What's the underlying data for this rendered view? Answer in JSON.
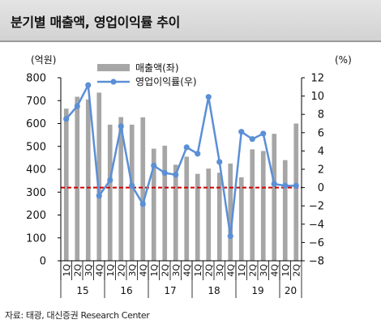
{
  "header": {
    "title": "분기별 매출액, 영업이익률 추이"
  },
  "source": "자료: 태광, 대신증권 Research Center",
  "colors": {
    "bar": "#a6a6a6",
    "line": "#5b8fd6",
    "reference": "#d40000",
    "header_bg": "#d9d9d9"
  },
  "chart_data": {
    "type": "bar+line",
    "left_axis_label": "(억원)",
    "right_axis_label": "(%)",
    "categories": [
      "1Q",
      "2Q",
      "3Q",
      "4Q",
      "1Q",
      "2Q",
      "3Q",
      "4Q",
      "1Q",
      "2Q",
      "3Q",
      "4Q",
      "1Q",
      "2Q",
      "3Q",
      "4Q",
      "1Q",
      "2Q",
      "3Q",
      "4Q",
      "1Q",
      "2Q"
    ],
    "years": [
      {
        "label": "15",
        "count": 4
      },
      {
        "label": "16",
        "count": 4
      },
      {
        "label": "17",
        "count": 4
      },
      {
        "label": "18",
        "count": 4
      },
      {
        "label": "19",
        "count": 4
      },
      {
        "label": "20",
        "count": 2
      }
    ],
    "series": [
      {
        "name": "매출액(좌)",
        "type": "bar",
        "axis": "left",
        "values": [
          665,
          717,
          705,
          735,
          595,
          628,
          595,
          627,
          490,
          503,
          420,
          455,
          380,
          403,
          385,
          425,
          365,
          487,
          480,
          555,
          440,
          600
        ]
      },
      {
        "name": "영업이익률(우)",
        "type": "line",
        "axis": "right",
        "values": [
          7.5,
          8.9,
          11.2,
          -0.9,
          0.8,
          6.7,
          0.2,
          -1.8,
          2.4,
          1.6,
          1.4,
          4.4,
          3.7,
          9.9,
          2.8,
          -5.3,
          6.1,
          5.3,
          5.9,
          0.4,
          0.2,
          0.2
        ]
      }
    ],
    "left_ylim": [
      0,
      800
    ],
    "left_ticks": [
      "800",
      "700",
      "600",
      "500",
      "400",
      "300",
      "200",
      "100",
      "0"
    ],
    "right_ylim": [
      -8,
      12
    ],
    "right_ticks": [
      "12",
      "10",
      "8",
      "6",
      "4",
      "2",
      "0",
      "−2",
      "−4",
      "−6",
      "−8"
    ],
    "reference_line": {
      "axis": "right",
      "value": 0,
      "style": "dashed",
      "color": "#d40000"
    },
    "legend_position": "top-center",
    "grid": false
  }
}
